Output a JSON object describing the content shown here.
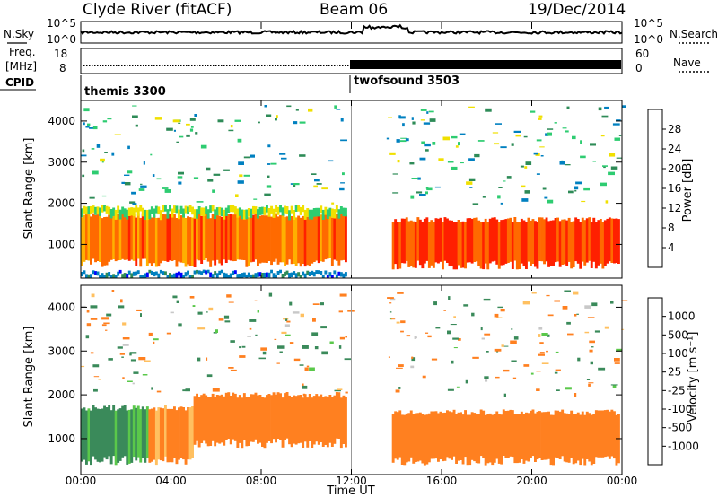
{
  "header": {
    "station": "Clyde River (fitACF)",
    "beam": "Beam 06",
    "date": "19/Dec/2014"
  },
  "noise_panel": {
    "left_label": "N.Sky",
    "right_label": "N.Search",
    "ticks_left": [
      "10^5",
      "10^0"
    ],
    "ticks_right": [
      "10^5",
      "10^0"
    ]
  },
  "freq_panel": {
    "left_label_line1": "Freq.",
    "left_label_line2": "[MHz]",
    "ticks_left": [
      "18",
      "8"
    ],
    "right_label": "Nave",
    "ticks_right": [
      "60",
      "0"
    ]
  },
  "cpid_panel": {
    "label": "CPID",
    "modes": [
      {
        "name": "themis 3300",
        "start_hour": 0
      },
      {
        "name": "twofsound 3503",
        "start_hour": 12
      }
    ]
  },
  "x_axis": {
    "label": "Time UT",
    "tick_labels": [
      "00:00",
      "04:00",
      "08:00",
      "12:00",
      "16:00",
      "20:00",
      "00:00"
    ],
    "range_hours": [
      0,
      24
    ]
  },
  "power_panel": {
    "ylabel": "Slant Range [km]",
    "yticks": [
      "4000",
      "3000",
      "2000",
      "1000"
    ],
    "colorbar_label": "Power [dB]",
    "colorbar_ticks": [
      "28",
      "24",
      "20",
      "16",
      "12",
      "8",
      "4"
    ],
    "colors": [
      "#0000ff",
      "#0080c0",
      "#2e8b57",
      "#2ecc71",
      "#f0e000",
      "#ffb000",
      "#ff6a00",
      "#ff2000"
    ]
  },
  "velocity_panel": {
    "ylabel": "Slant Range [km]",
    "yticks": [
      "4000",
      "3000",
      "2000",
      "1000"
    ],
    "colorbar_label": "Velocity [m s⁻¹]",
    "colorbar_ticks": [
      "1000",
      "500",
      "100",
      "25",
      "-25",
      "-100",
      "-500",
      "-1000"
    ],
    "colors": [
      "#1f3fbf",
      "#2e6e8e",
      "#3a8a5a",
      "#5ac84a",
      "#c8c8c8",
      "#ffc060",
      "#ff8020",
      "#ff4010",
      "#ff0000"
    ]
  },
  "chart_data": {
    "type": "heatmap",
    "x_unit": "hours UT",
    "y_unit": "km",
    "x_range": [
      0,
      24
    ],
    "y_range": [
      180,
      4500
    ],
    "power_bands": [
      {
        "t_start": 0.0,
        "t_end": 11.8,
        "r_low": 550,
        "r_high": 1700,
        "value_db": 26
      },
      {
        "t_start": 0.0,
        "t_end": 11.8,
        "r_low": 1700,
        "r_high": 1900,
        "value_db": 16
      },
      {
        "t_start": 13.8,
        "t_end": 23.9,
        "r_low": 500,
        "r_high": 1600,
        "value_db": 28
      },
      {
        "t_start": 0.0,
        "t_end": 11.8,
        "r_low": 200,
        "r_high": 320,
        "value_db": 6
      }
    ],
    "velocity_bands": [
      {
        "t_start": 0.0,
        "t_end": 3.0,
        "r_low": 500,
        "r_high": 1700,
        "value_ms": 150
      },
      {
        "t_start": 3.0,
        "t_end": 5.0,
        "r_low": 500,
        "r_high": 1700,
        "value_ms": -150
      },
      {
        "t_start": 5.0,
        "t_end": 11.8,
        "r_low": 900,
        "r_high": 2000,
        "value_ms": -200
      },
      {
        "t_start": 13.8,
        "t_end": 23.9,
        "r_low": 500,
        "r_high": 1600,
        "value_ms": -250
      }
    ]
  }
}
